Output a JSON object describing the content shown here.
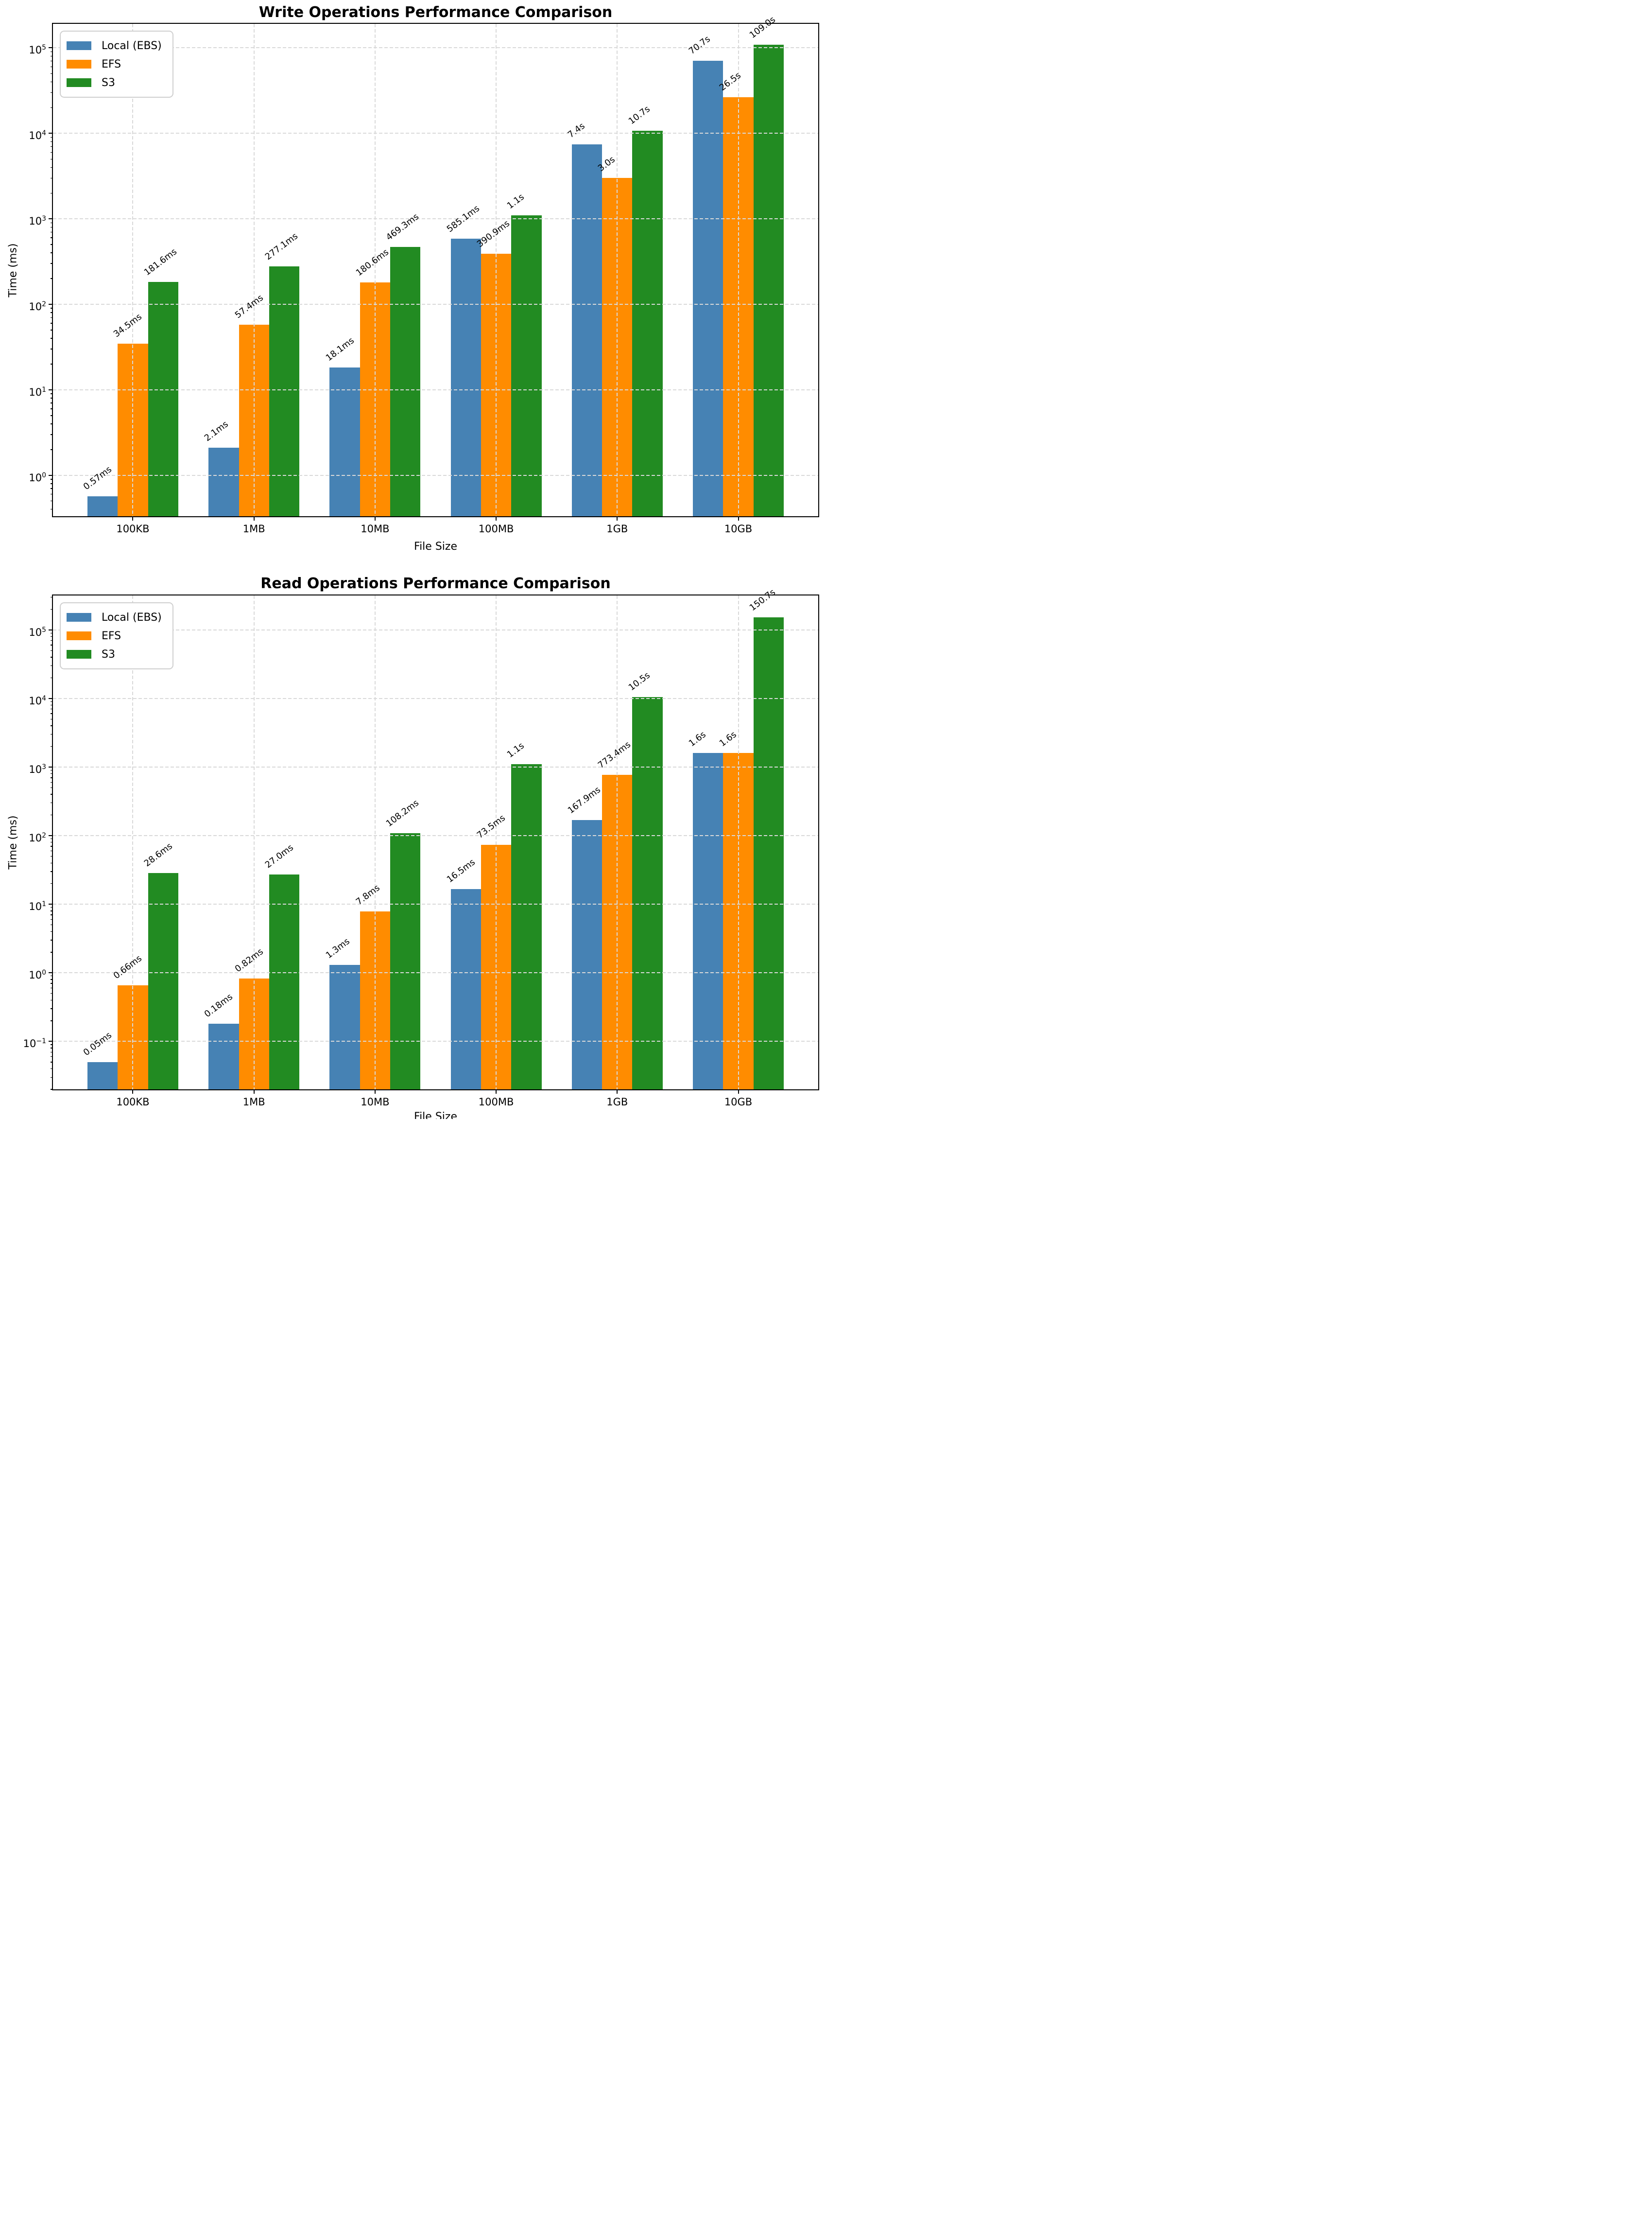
{
  "figure": {
    "background": "#ffffff",
    "grid_color": "#d9d9d9",
    "spine_color": "#000000",
    "text_color": "#000000"
  },
  "chart_data": [
    {
      "type": "bar",
      "title": "Write Operations Performance Comparison",
      "xlabel": "File Size",
      "ylabel": "Time (ms)",
      "yscale": "log",
      "ylim_log10": [
        -0.48,
        5.28
      ],
      "ytick_exponents": [
        0,
        1,
        2,
        3,
        4,
        5
      ],
      "grid": true,
      "legend_position": "upper left",
      "categories": [
        "100KB",
        "1MB",
        "10MB",
        "100MB",
        "1GB",
        "10GB"
      ],
      "series": [
        {
          "name": "Local (EBS)",
          "color": "#4682B4",
          "values_ms": [
            0.57,
            2.1,
            18.1,
            585.1,
            7400,
            70700
          ],
          "labels": [
            "0.57ms",
            "2.1ms",
            "18.1ms",
            "585.1ms",
            "7.4s",
            "70.7s"
          ]
        },
        {
          "name": "EFS",
          "color": "#FF8C00",
          "values_ms": [
            34.5,
            57.4,
            180.6,
            390.9,
            3000,
            26500
          ],
          "labels": [
            "34.5ms",
            "57.4ms",
            "180.6ms",
            "390.9ms",
            "3.0s",
            "26.5s"
          ]
        },
        {
          "name": "S3",
          "color": "#228B22",
          "values_ms": [
            181.6,
            277.1,
            469.3,
            1100,
            10700,
            109000
          ],
          "labels": [
            "181.6ms",
            "277.1ms",
            "469.3ms",
            "1.1s",
            "10.7s",
            "109.0s"
          ]
        }
      ]
    },
    {
      "type": "bar",
      "title": "Read Operations Performance Comparison",
      "xlabel": "File Size",
      "ylabel": "Time (ms)",
      "yscale": "log",
      "ylim_log10": [
        -1.7,
        5.5
      ],
      "ytick_exponents": [
        -1,
        0,
        1,
        2,
        3,
        4,
        5
      ],
      "grid": true,
      "legend_position": "upper left",
      "categories": [
        "100KB",
        "1MB",
        "10MB",
        "100MB",
        "1GB",
        "10GB"
      ],
      "series": [
        {
          "name": "Local (EBS)",
          "color": "#4682B4",
          "values_ms": [
            0.05,
            0.18,
            1.3,
            16.5,
            167.9,
            1600
          ],
          "labels": [
            "0.05ms",
            "0.18ms",
            "1.3ms",
            "16.5ms",
            "167.9ms",
            "1.6s"
          ]
        },
        {
          "name": "EFS",
          "color": "#FF8C00",
          "values_ms": [
            0.66,
            0.82,
            7.8,
            73.5,
            773.4,
            1600
          ],
          "labels": [
            "0.66ms",
            "0.82ms",
            "7.8ms",
            "73.5ms",
            "773.4ms",
            "1.6s"
          ]
        },
        {
          "name": "S3",
          "color": "#228B22",
          "values_ms": [
            28.6,
            27.0,
            108.2,
            1100,
            10500,
            150700
          ],
          "labels": [
            "28.6ms",
            "27.0ms",
            "108.2ms",
            "1.1s",
            "10.5s",
            "150.7s"
          ]
        }
      ]
    }
  ]
}
